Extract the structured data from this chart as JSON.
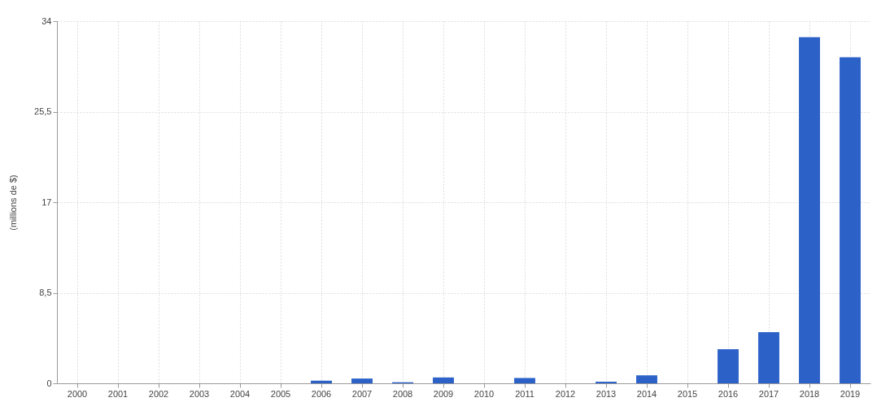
{
  "chart_data": {
    "type": "bar",
    "ylabel": "(millions de $)",
    "categories": [
      "2000",
      "2001",
      "2002",
      "2003",
      "2004",
      "2005",
      "2006",
      "2007",
      "2008",
      "2009",
      "2010",
      "2011",
      "2012",
      "2013",
      "2014",
      "2015",
      "2016",
      "2017",
      "2018",
      "2019"
    ],
    "values": [
      0,
      0,
      0,
      0,
      0,
      0,
      0.25,
      0.45,
      0.1,
      0.55,
      0,
      0.5,
      0,
      0.15,
      0.75,
      0,
      3.2,
      4.8,
      32.5,
      30.6
    ],
    "color": "#2c62c8",
    "ylim": [
      0,
      34
    ],
    "yticks": [
      0,
      {
        "value": 8.5,
        "label": "8,5"
      },
      17,
      {
        "value": 25.5,
        "label": "25,5"
      },
      34
    ],
    "grid": true
  }
}
